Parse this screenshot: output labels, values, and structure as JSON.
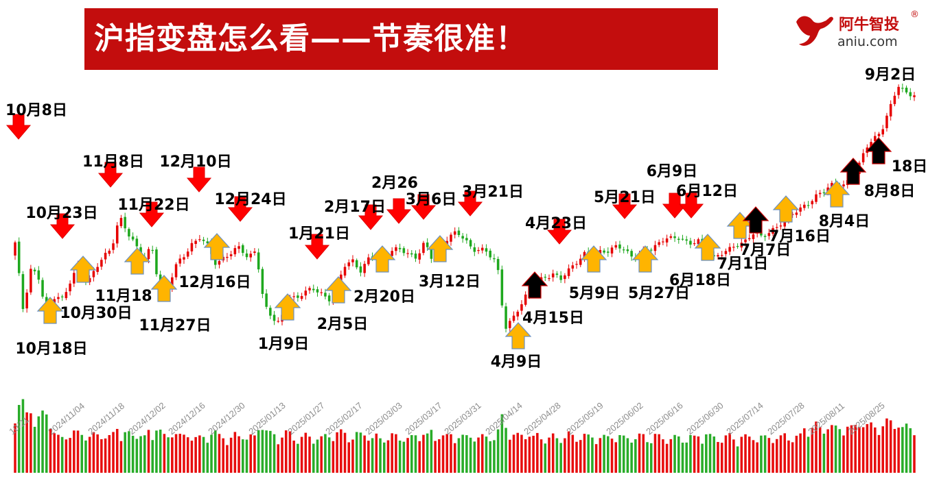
{
  "header": {
    "title": "沪指变盘怎么看——节奏很准！"
  },
  "logo": {
    "name": "阿牛智投",
    "reg": "®",
    "domain": "aniu.com",
    "icon": "bull-head-icon",
    "brand_color": "#c30d0d"
  },
  "chart_data": {
    "type": "candlestick",
    "title": "",
    "xlabel": "",
    "ylabel": "",
    "grid": false,
    "legend": "none",
    "colors": {
      "up": "#e60000",
      "down": "#1ea81e",
      "down_arrow": "#ff0000",
      "up_arrow": "#ffb400",
      "black_arrow": "#000000"
    },
    "x_ticks": [
      "10/21",
      "2024/11/04",
      "2024/11/18",
      "2024/12/02",
      "2024/12/16",
      "2024/12/30",
      "2025/01/13",
      "2025/01/27",
      "2025/02/17",
      "2025/03/03",
      "2025/03/17",
      "2025/03/31",
      "2025/04/14",
      "2025/04/28",
      "2025/05/19",
      "2025/06/02",
      "2025/06/16",
      "2025/06/30",
      "2025/07/14",
      "2025/07/28",
      "2025/08/11",
      "2025/08/25"
    ],
    "close_series": [
      3400,
      3200,
      3330,
      3290,
      3170,
      3250,
      3230,
      3290,
      3340,
      3280,
      3320,
      3360,
      3390,
      3480,
      3430,
      3400,
      3350,
      3390,
      3260,
      3270,
      3330,
      3360,
      3400,
      3420,
      3390,
      3340,
      3360,
      3370,
      3390,
      3360,
      3380,
      3210,
      3180,
      3160,
      3240,
      3230,
      3260,
      3260,
      3250,
      3230,
      3260,
      3330,
      3350,
      3320,
      3350,
      3370,
      3360,
      3380,
      3380,
      3370,
      3360,
      3400,
      3350,
      3390,
      3420,
      3430,
      3420,
      3380,
      3380,
      3370,
      3350,
      3140,
      3170,
      3220,
      3260,
      3280,
      3300,
      3310,
      3290,
      3320,
      3350,
      3370,
      3360,
      3380,
      3380,
      3390,
      3380,
      3360,
      3370,
      3380,
      3400,
      3420,
      3410,
      3420,
      3400,
      3410,
      3380,
      3360,
      3370,
      3380,
      3400,
      3410,
      3430,
      3420,
      3440,
      3450,
      3470,
      3500,
      3510,
      3520,
      3550,
      3570,
      3580,
      3570,
      3600,
      3630,
      3690,
      3720,
      3750,
      3810,
      3880,
      3860,
      3850
    ],
    "annotations": [
      {
        "label": "10月8日",
        "type": "down"
      },
      {
        "label": "10月18日",
        "type": "up"
      },
      {
        "label": "10月23日",
        "type": "down"
      },
      {
        "label": "10月30日",
        "type": "up"
      },
      {
        "label": "11月8日",
        "type": "down"
      },
      {
        "label": "11月18",
        "type": "up"
      },
      {
        "label": "11月22日",
        "type": "down"
      },
      {
        "label": "11月27日",
        "type": "up"
      },
      {
        "label": "12月10日",
        "type": "down"
      },
      {
        "label": "12月16日",
        "type": "up"
      },
      {
        "label": "12月24日",
        "type": "down"
      },
      {
        "label": "1月9日",
        "type": "up"
      },
      {
        "label": "1月21日",
        "type": "down"
      },
      {
        "label": "2月5日",
        "type": "up"
      },
      {
        "label": "2月17日",
        "type": "down"
      },
      {
        "label": "2月20日",
        "type": "up"
      },
      {
        "label": "2月26",
        "type": "down"
      },
      {
        "label": "3月6日",
        "type": "down"
      },
      {
        "label": "3月12日",
        "type": "up"
      },
      {
        "label": "3月21日",
        "type": "down"
      },
      {
        "label": "4月9日",
        "type": "up"
      },
      {
        "label": "4月15日",
        "type": "black"
      },
      {
        "label": "4月23日",
        "type": "down"
      },
      {
        "label": "5月9日",
        "type": "up"
      },
      {
        "label": "5月21日",
        "type": "down"
      },
      {
        "label": "5月27日",
        "type": "up"
      },
      {
        "label": "6月9日",
        "type": "down"
      },
      {
        "label": "6月12日",
        "type": "down"
      },
      {
        "label": "6月18日",
        "type": "up"
      },
      {
        "label": "7月1日",
        "type": "up"
      },
      {
        "label": "7月7日",
        "type": "black"
      },
      {
        "label": "7月16日",
        "type": "up"
      },
      {
        "label": "8月4日",
        "type": "up"
      },
      {
        "label": "8月8日",
        "type": "black"
      },
      {
        "label": "18日",
        "type": "black"
      },
      {
        "label": "9月2日",
        "type": "none"
      }
    ]
  }
}
